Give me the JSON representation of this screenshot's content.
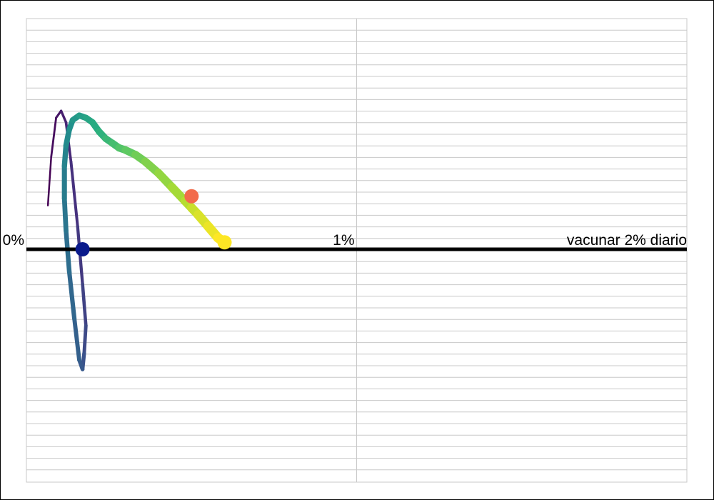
{
  "chart_data": {
    "type": "line",
    "title": "",
    "xlabel": "",
    "ylabel": "",
    "x_tick_labels": [
      "0%",
      "1%"
    ],
    "x_ticks": [
      0,
      1
    ],
    "xlim": [
      0,
      2
    ],
    "ylim": [
      -1,
      1
    ],
    "grid": true,
    "reference_line": {
      "label": "vacunar 2% diario",
      "y": 0
    },
    "series": [
      {
        "x": [
          0.065,
          0.075,
          0.09,
          0.105,
          0.12,
          0.135,
          0.155,
          0.17,
          0.18,
          0.175,
          0.17,
          0.16,
          0.145,
          0.13,
          0.12,
          0.115,
          0.115,
          0.12,
          0.13,
          0.14,
          0.16,
          0.18,
          0.2,
          0.22,
          0.24,
          0.26,
          0.28,
          0.3,
          0.33,
          0.36,
          0.4,
          0.44,
          0.48,
          0.5,
          0.52,
          0.55,
          0.58,
          0.6
        ],
        "y": [
          0.19,
          0.4,
          0.57,
          0.6,
          0.55,
          0.38,
          0.1,
          -0.15,
          -0.33,
          -0.45,
          -0.52,
          -0.48,
          -0.3,
          -0.1,
          0.08,
          0.22,
          0.36,
          0.45,
          0.52,
          0.56,
          0.58,
          0.57,
          0.55,
          0.51,
          0.48,
          0.46,
          0.44,
          0.43,
          0.41,
          0.38,
          0.33,
          0.27,
          0.21,
          0.18,
          0.15,
          0.1,
          0.05,
          0.03
        ]
      }
    ],
    "markers": [
      {
        "x": 0.17,
        "y": 0.0,
        "color": "#0a1a8c"
      },
      {
        "x": 0.5,
        "y": 0.23,
        "color": "#f26b4b"
      },
      {
        "x": 0.6,
        "y": 0.03,
        "color": "#fde725"
      }
    ]
  }
}
